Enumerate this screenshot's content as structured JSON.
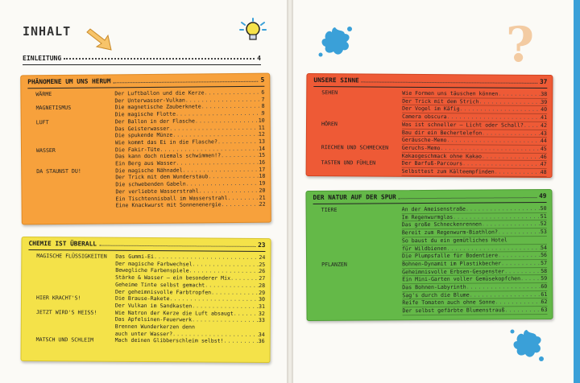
{
  "heading": "INHALT",
  "intro": {
    "label": "EINLEITUNG",
    "page": "4"
  },
  "colors": {
    "orange": "#f7a13c",
    "yellow": "#f4e249",
    "red": "#ee5a36",
    "green": "#64b948",
    "splash": "#3aa0d8"
  },
  "icons": [
    "arrow-down-icon",
    "lightbulb-icon",
    "paint-splash-icon",
    "question-mark-icon"
  ],
  "question_mark": "?",
  "sections": {
    "phaenomene": {
      "title": "PHÄNOMENE UM UNS HERUM",
      "page": "5",
      "rows": [
        {
          "cat": "WÄRME",
          "text": "Der Luftballon und die Kerze",
          "page": "6"
        },
        {
          "cat": "",
          "text": "Der Unterwasser-Vulkan",
          "page": "7"
        },
        {
          "cat": "MAGNETISMUS",
          "text": "Die magnetische Zauberknete",
          "page": "8"
        },
        {
          "cat": "",
          "text": "Die magische Flotte",
          "page": "9"
        },
        {
          "cat": "LUFT",
          "text": "Der Ballon in der Flasche",
          "page": "10"
        },
        {
          "cat": "",
          "text": "Das Geisterwasser",
          "page": "11"
        },
        {
          "cat": "",
          "text": "Die spukende Münze",
          "page": "12"
        },
        {
          "cat": "",
          "text": "Wie kommt das Ei in die Flasche?",
          "page": "13"
        },
        {
          "cat": "WASSER",
          "text": "Die Fakir-Tüte",
          "page": "14"
        },
        {
          "cat": "",
          "text": "Das kann doch niemals schwimmen!?",
          "page": "15"
        },
        {
          "cat": "",
          "text": "Ein Berg aus Wasser",
          "page": "16"
        },
        {
          "cat": "DA STAUNST DU!",
          "text": "Die magische Nähnadel",
          "page": "17"
        },
        {
          "cat": "",
          "text": "Der Trick mit dem Wunderstaub",
          "page": "18"
        },
        {
          "cat": "",
          "text": "Die schwebenden Gabeln",
          "page": "19"
        },
        {
          "cat": "",
          "text": "Der verliebte Wasserstrahl",
          "page": "20"
        },
        {
          "cat": "",
          "text": "Ein Tischtennisball im Wasserstrahl",
          "page": "21"
        },
        {
          "cat": "",
          "text": "Eine Knackwurst mit Sonnenenergie",
          "page": "22"
        }
      ]
    },
    "chemie": {
      "title": "CHEMIE IST ÜBERALL",
      "page": "23",
      "rows": [
        {
          "cat": "MAGISCHE FLÜSSIGKEITEN",
          "text": "Das Gummi-Ei",
          "page": "24"
        },
        {
          "cat": "",
          "text": "Der magische Farbwechsel",
          "page": "25"
        },
        {
          "cat": "",
          "text": "Bewegliche Farbenspiele",
          "page": "26"
        },
        {
          "cat": "",
          "text": "Stärke & Wasser – ein besonderer Mix",
          "page": "27"
        },
        {
          "cat": "",
          "text": "Geheime Tinte selbst gemacht",
          "page": "28"
        },
        {
          "cat": "",
          "text": "Der geheimnisvolle Farbtropfen",
          "page": "29"
        },
        {
          "cat": "HIER KRACHT'S!",
          "text": "Die Brause-Rakete",
          "page": "30"
        },
        {
          "cat": "",
          "text": "Der Vulkan im Sandkasten",
          "page": "31"
        },
        {
          "cat": "JETZT WIRD'S HEISS!",
          "text": "Wie Natron der Kerze die Luft absaugt",
          "page": "32"
        },
        {
          "cat": "",
          "text": "Das Apfelsinen-Feuerwerk",
          "page": "33"
        },
        {
          "cat": "",
          "text": "Brennen Wunderkerzen denn",
          "page": ""
        },
        {
          "cat": "",
          "text": "auch unter Wasser?",
          "page": "34"
        },
        {
          "cat": "MATSCH UND SCHLEIM",
          "text": "Mach deinen Glibberschleim selbst!",
          "page": "36"
        }
      ]
    },
    "sinne": {
      "title": "UNSERE SINNE",
      "page": "37",
      "rows": [
        {
          "cat": "SEHEN",
          "text": "Wie Formen uns täuschen können",
          "page": "38"
        },
        {
          "cat": "",
          "text": "Der Trick mit dem Strich",
          "page": "39"
        },
        {
          "cat": "",
          "text": "Der Vogel im Käfig",
          "page": "40"
        },
        {
          "cat": "",
          "text": "Camera obscura",
          "page": "41"
        },
        {
          "cat": "HÖREN",
          "text": "Was ist schneller – Licht oder Schall?",
          "page": "42"
        },
        {
          "cat": "",
          "text": "Bau dir ein Bechertelefon",
          "page": "43"
        },
        {
          "cat": "",
          "text": "Geräusche-Memo",
          "page": "44"
        },
        {
          "cat": "RIECHEN UND SCHMECKEN",
          "text": "Geruchs-Memo",
          "page": "45"
        },
        {
          "cat": "",
          "text": "Kakaogeschmack ohne Kakao",
          "page": "46"
        },
        {
          "cat": "TASTEN UND FÜHLEN",
          "text": "Der Barfuß-Parcours",
          "page": "47"
        },
        {
          "cat": "",
          "text": "Selbsttest zum Kälteempfinden",
          "page": "48"
        }
      ]
    },
    "natur": {
      "title": "DER NATUR AUF DER SPUR",
      "page": "49",
      "rows": [
        {
          "cat": "TIERE",
          "text": "An der Ameisenstraße",
          "page": "50"
        },
        {
          "cat": "",
          "text": "Im Regenwurmglas",
          "page": "51"
        },
        {
          "cat": "",
          "text": "Das große Schneckenrennen",
          "page": "52"
        },
        {
          "cat": "",
          "text": "Bereit zum Regenwurm-Biathlon?",
          "page": "53"
        },
        {
          "cat": "",
          "text": "So baust du ein gemütliches Hotel",
          "page": ""
        },
        {
          "cat": "",
          "text": "für Wildbienen",
          "page": "54"
        },
        {
          "cat": "",
          "text": "Die Plumpsfalle für Bodentiere",
          "page": "56"
        },
        {
          "cat": "PFLANZEN",
          "text": "Bohnen-Dynamit im Plastikbecher",
          "page": "57"
        },
        {
          "cat": "",
          "text": "Geheimnisvolle Erbsen-Gespenster",
          "page": "58"
        },
        {
          "cat": "",
          "text": "Ein Mini-Garten voller Gemüsekopfchen",
          "page": "59"
        },
        {
          "cat": "",
          "text": "Das Bohnen-Labyrinth",
          "page": "60"
        },
        {
          "cat": "",
          "text": "Sag's durch die Blume",
          "page": "61"
        },
        {
          "cat": "",
          "text": "Reife Tomaten auch ohne Sonne",
          "page": "62"
        },
        {
          "cat": "",
          "text": "Der selbst gefärbte Blumenstrauß",
          "page": "63"
        }
      ]
    }
  }
}
